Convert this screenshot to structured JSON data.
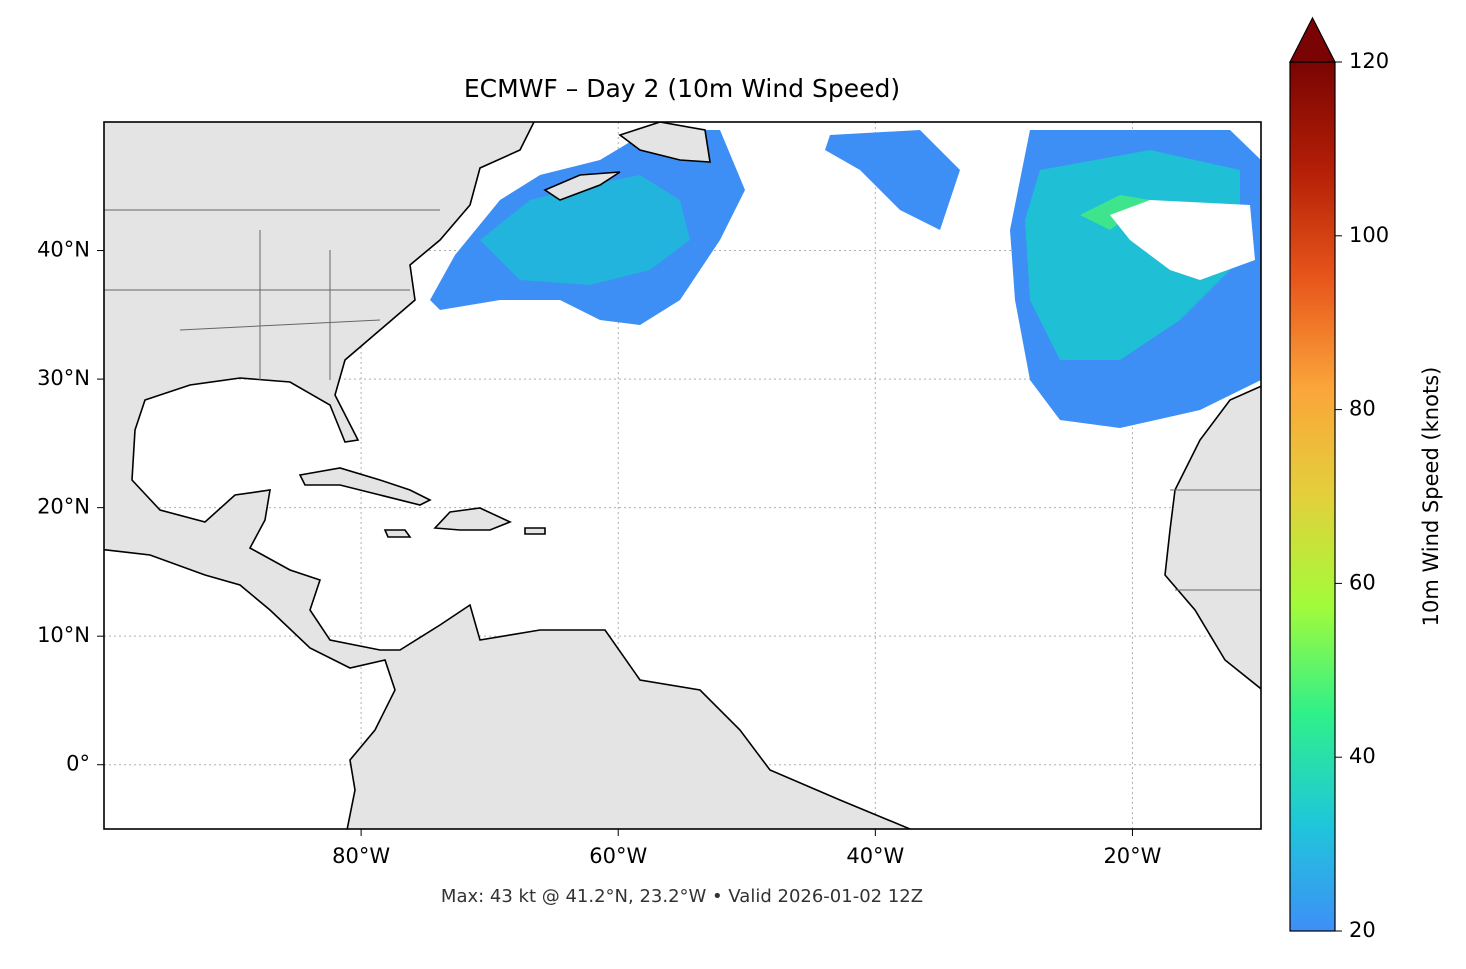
{
  "chart_data": {
    "type": "map",
    "title": "ECMWF – Day 2 (10m Wind Speed)",
    "xlim": [
      -100,
      -10
    ],
    "ylim": [
      -5,
      50
    ],
    "xticks": [
      {
        "value": -80,
        "label": "80°W"
      },
      {
        "value": -60,
        "label": "60°W"
      },
      {
        "value": -40,
        "label": "40°W"
      },
      {
        "value": -20,
        "label": "20°W"
      }
    ],
    "yticks": [
      {
        "value": 0,
        "label": "0°"
      },
      {
        "value": 10,
        "label": "10°N"
      },
      {
        "value": 20,
        "label": "20°N"
      },
      {
        "value": 30,
        "label": "30°N"
      },
      {
        "value": 40,
        "label": "40°N"
      }
    ],
    "grid": true,
    "colorbar": {
      "label": "10m Wind Speed (knots)",
      "lim": [
        20,
        120
      ],
      "ticks": [
        20,
        40,
        60,
        80,
        100,
        120
      ],
      "extend": "max",
      "colors": [
        "#3e8ff7",
        "#1fc7d9",
        "#2ff08a",
        "#a3fb3a",
        "#e3d03b",
        "#fba53a",
        "#e8561b",
        "#b41f06",
        "#7a0403"
      ]
    },
    "note": "Max: 43 kt @ 41.2°N, 23.2°W • Valid 2026-01-02 12Z"
  }
}
